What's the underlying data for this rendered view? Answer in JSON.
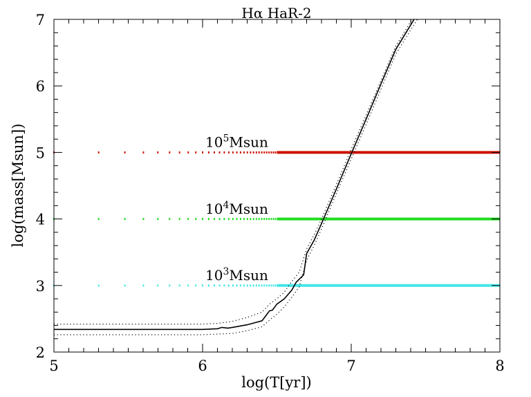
{
  "chart_data": {
    "type": "line",
    "title": "Hα HaR-2",
    "xlabel": "log(T[yr])",
    "ylabel": "log(mass[Msun])",
    "xlim": [
      5,
      8
    ],
    "ylim": [
      2,
      7
    ],
    "xticks": [
      "5",
      "6",
      "7",
      "8"
    ],
    "yticks": [
      "2",
      "3",
      "4",
      "5",
      "6",
      "7"
    ],
    "grid": false,
    "annotations": [
      {
        "base": "10",
        "exp": "5",
        "unit": "Msun",
        "x": 6.0,
        "y": 5.08
      },
      {
        "base": "10",
        "exp": "4",
        "unit": "Msun",
        "x": 6.0,
        "y": 4.08
      },
      {
        "base": "10",
        "exp": "3",
        "unit": "Msun",
        "x": 6.0,
        "y": 3.08
      }
    ],
    "reference_masses": [
      {
        "level": 5,
        "color": "#cc1100"
      },
      {
        "level": 4,
        "color": "#22dd22"
      },
      {
        "level": 3,
        "color": "#44e6e6"
      }
    ],
    "series": [
      {
        "role": "central",
        "style": "solid",
        "x": [
          5.0,
          5.5,
          6.0,
          6.1,
          6.13,
          6.17,
          6.2,
          6.3,
          6.4,
          6.45,
          6.47,
          6.5,
          6.55,
          6.6,
          6.63,
          6.68,
          6.7,
          6.75,
          6.8,
          6.9,
          7.0,
          7.1,
          7.2,
          7.3,
          7.45
        ],
        "y": [
          2.34,
          2.34,
          2.34,
          2.35,
          2.37,
          2.36,
          2.37,
          2.41,
          2.47,
          2.62,
          2.63,
          2.72,
          2.8,
          2.93,
          3.05,
          3.16,
          3.48,
          3.68,
          3.93,
          4.45,
          4.98,
          5.5,
          6.03,
          6.55,
          7.1
        ],
        "color": "#000000"
      },
      {
        "role": "upper-bound",
        "style": "dotted",
        "x": [
          5.0,
          5.5,
          6.0,
          6.1,
          6.2,
          6.3,
          6.4,
          6.45,
          6.5,
          6.55,
          6.6,
          6.65,
          6.7,
          6.75,
          6.8,
          6.9,
          7.0,
          7.1,
          7.2,
          7.3,
          7.45
        ],
        "y": [
          2.42,
          2.42,
          2.42,
          2.43,
          2.46,
          2.52,
          2.6,
          2.72,
          2.8,
          2.9,
          3.06,
          3.2,
          3.55,
          3.76,
          4.0,
          4.52,
          5.05,
          5.56,
          6.08,
          6.6,
          7.15
        ],
        "color": "#000000"
      },
      {
        "role": "lower-bound",
        "style": "dotted",
        "x": [
          5.0,
          5.5,
          6.0,
          6.1,
          6.2,
          6.3,
          6.4,
          6.45,
          6.5,
          6.55,
          6.6,
          6.65,
          6.7,
          6.75,
          6.8,
          6.9,
          7.0,
          7.1,
          7.2,
          7.3,
          7.45
        ],
        "y": [
          2.26,
          2.26,
          2.26,
          2.27,
          2.28,
          2.32,
          2.38,
          2.48,
          2.57,
          2.68,
          2.82,
          2.98,
          3.38,
          3.6,
          3.85,
          4.38,
          4.9,
          5.42,
          5.95,
          6.48,
          7.02
        ],
        "color": "#000000"
      }
    ]
  }
}
